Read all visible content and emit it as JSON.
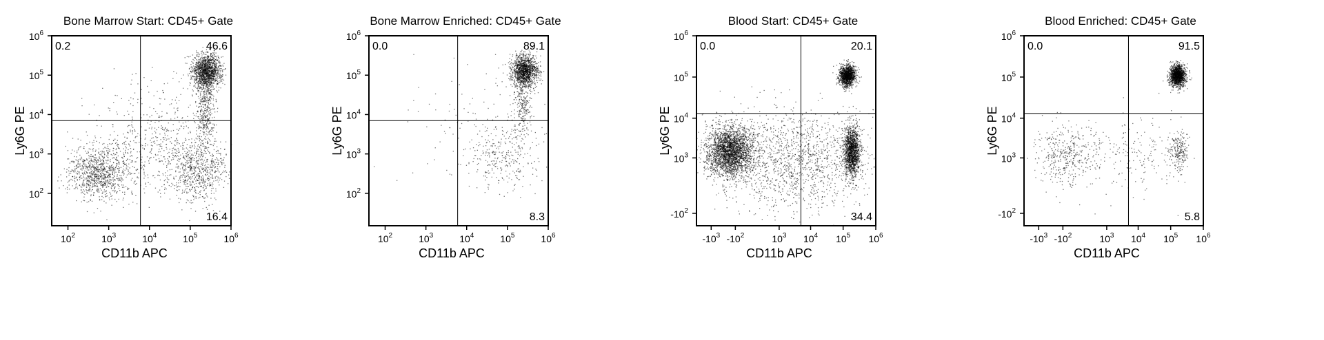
{
  "chart_data": [
    {
      "type": "scatter",
      "title": "Bone Marrow Start: CD45+ Gate",
      "xlabel": "CD11b APC",
      "ylabel": "Ly6G PE",
      "x_scale": "log",
      "y_scale": "log",
      "xlim": [
        40,
        1000000
      ],
      "ylim": [
        15,
        1000000
      ],
      "x_ticks": [
        {
          "value": 100,
          "base": "10",
          "exp": "2"
        },
        {
          "value": 1000,
          "base": "10",
          "exp": "3"
        },
        {
          "value": 10000,
          "base": "10",
          "exp": "4"
        },
        {
          "value": 100000,
          "base": "10",
          "exp": "5"
        },
        {
          "value": 1000000,
          "base": "10",
          "exp": "6"
        }
      ],
      "y_ticks": [
        {
          "value": 100,
          "base": "10",
          "exp": "2"
        },
        {
          "value": 1000,
          "base": "10",
          "exp": "3"
        },
        {
          "value": 10000,
          "base": "10",
          "exp": "4"
        },
        {
          "value": 100000,
          "base": "10",
          "exp": "5"
        },
        {
          "value": 1000000,
          "base": "10",
          "exp": "6"
        }
      ],
      "gate": {
        "x": 6000,
        "y": 7000
      },
      "quadrants": {
        "top_left": "0.2",
        "top_right": "46.6",
        "bottom_left": "",
        "bottom_right": "16.4"
      },
      "populations": [
        {
          "x": 250000,
          "y": 130000,
          "sx": 0.18,
          "sy": 0.22,
          "n": 1400
        },
        {
          "x": 230000,
          "y": 15000,
          "sx": 0.12,
          "sy": 0.5,
          "n": 400
        },
        {
          "x": 150000,
          "y": 400,
          "sx": 0.35,
          "sy": 0.4,
          "n": 700
        },
        {
          "x": 600,
          "y": 350,
          "sx": 0.4,
          "sy": 0.35,
          "n": 1000
        },
        {
          "x": 15000,
          "y": 2000,
          "sx": 0.7,
          "sy": 0.7,
          "n": 500
        }
      ]
    },
    {
      "type": "scatter",
      "title": "Bone Marrow Enriched: CD45+ Gate",
      "xlabel": "CD11b APC",
      "ylabel": "Ly6G PE",
      "x_scale": "log",
      "y_scale": "log",
      "xlim": [
        40,
        1000000
      ],
      "ylim": [
        15,
        1000000
      ],
      "x_ticks": [
        {
          "value": 100,
          "base": "10",
          "exp": "2"
        },
        {
          "value": 1000,
          "base": "10",
          "exp": "3"
        },
        {
          "value": 10000,
          "base": "10",
          "exp": "4"
        },
        {
          "value": 100000,
          "base": "10",
          "exp": "5"
        },
        {
          "value": 1000000,
          "base": "10",
          "exp": "6"
        }
      ],
      "y_ticks": [
        {
          "value": 100,
          "base": "10",
          "exp": "2"
        },
        {
          "value": 1000,
          "base": "10",
          "exp": "3"
        },
        {
          "value": 10000,
          "base": "10",
          "exp": "4"
        },
        {
          "value": 100000,
          "base": "10",
          "exp": "5"
        },
        {
          "value": 1000000,
          "base": "10",
          "exp": "6"
        }
      ],
      "gate": {
        "x": 6000,
        "y": 7000
      },
      "quadrants": {
        "top_left": "0.0",
        "top_right": "89.1",
        "bottom_left": "",
        "bottom_right": "8.3"
      },
      "populations": [
        {
          "x": 260000,
          "y": 130000,
          "sx": 0.16,
          "sy": 0.2,
          "n": 1300
        },
        {
          "x": 230000,
          "y": 20000,
          "sx": 0.1,
          "sy": 0.45,
          "n": 250
        },
        {
          "x": 80000,
          "y": 900,
          "sx": 0.45,
          "sy": 0.45,
          "n": 280
        },
        {
          "x": 20000,
          "y": 5000,
          "sx": 0.9,
          "sy": 0.9,
          "n": 120
        }
      ]
    },
    {
      "type": "scatter",
      "title": "Blood Start: CD45+ Gate",
      "xlabel": "CD11b APC",
      "ylabel": "Ly6G PE",
      "x_scale": "biexponential",
      "y_scale": "biexponential",
      "xlim": [
        -3000,
        1000000
      ],
      "ylim": [
        -300,
        1000000
      ],
      "x_ticks": [
        {
          "value": -1000,
          "base": "-10",
          "exp": "3"
        },
        {
          "value": -100,
          "base": "-10",
          "exp": "2"
        },
        {
          "value": 1000,
          "base": "10",
          "exp": "3"
        },
        {
          "value": 10000,
          "base": "10",
          "exp": "4"
        },
        {
          "value": 100000,
          "base": "10",
          "exp": "5"
        },
        {
          "value": 1000000,
          "base": "10",
          "exp": "6"
        }
      ],
      "y_ticks": [
        {
          "value": -100,
          "base": "-10",
          "exp": "2"
        },
        {
          "value": 1000,
          "base": "10",
          "exp": "3"
        },
        {
          "value": 10000,
          "base": "10",
          "exp": "4"
        },
        {
          "value": 100000,
          "base": "10",
          "exp": "5"
        },
        {
          "value": 1000000,
          "base": "10",
          "exp": "6"
        }
      ],
      "gate": {
        "x": 5000,
        "y": 13000
      },
      "quadrants": {
        "top_left": "0.0",
        "top_right": "20.1",
        "bottom_left": "",
        "bottom_right": "34.4"
      },
      "populations": [
        {
          "x": 130000,
          "y": 110000,
          "sx": 0.13,
          "sy": 0.13,
          "n": 1300
        },
        {
          "x": 180000,
          "y": 1500,
          "sx": 0.12,
          "sy": 0.3,
          "n": 1500
        },
        {
          "x": -200,
          "y": 1500,
          "sx": 0.35,
          "sy": 0.3,
          "n": 2600
        },
        {
          "x": 3000,
          "y": 900,
          "sx": 1.2,
          "sy": 0.6,
          "n": 1500
        }
      ]
    },
    {
      "type": "scatter",
      "title": "Blood Enriched: CD45+ Gate",
      "xlabel": "CD11b APC",
      "ylabel": "Ly6G PE",
      "x_scale": "biexponential",
      "y_scale": "biexponential",
      "xlim": [
        -3000,
        1000000
      ],
      "ylim": [
        -300,
        1000000
      ],
      "x_ticks": [
        {
          "value": -1000,
          "base": "-10",
          "exp": "3"
        },
        {
          "value": -100,
          "base": "-10",
          "exp": "2"
        },
        {
          "value": 1000,
          "base": "10",
          "exp": "3"
        },
        {
          "value": 10000,
          "base": "10",
          "exp": "4"
        },
        {
          "value": 100000,
          "base": "10",
          "exp": "5"
        },
        {
          "value": 1000000,
          "base": "10",
          "exp": "6"
        }
      ],
      "y_ticks": [
        {
          "value": -100,
          "base": "-10",
          "exp": "2"
        },
        {
          "value": 1000,
          "base": "10",
          "exp": "3"
        },
        {
          "value": 10000,
          "base": "10",
          "exp": "4"
        },
        {
          "value": 100000,
          "base": "10",
          "exp": "5"
        },
        {
          "value": 1000000,
          "base": "10",
          "exp": "6"
        }
      ],
      "gate": {
        "x": 5000,
        "y": 13000
      },
      "quadrants": {
        "top_left": "0.0",
        "top_right": "91.5",
        "bottom_left": "",
        "bottom_right": "5.8"
      },
      "populations": [
        {
          "x": 160000,
          "y": 110000,
          "sx": 0.12,
          "sy": 0.13,
          "n": 1500
        },
        {
          "x": 170000,
          "y": 1500,
          "sx": 0.15,
          "sy": 0.25,
          "n": 220
        },
        {
          "x": -100,
          "y": 1200,
          "sx": 0.45,
          "sy": 0.35,
          "n": 380
        },
        {
          "x": 5000,
          "y": 1200,
          "sx": 1.0,
          "sy": 0.5,
          "n": 220
        }
      ]
    }
  ]
}
